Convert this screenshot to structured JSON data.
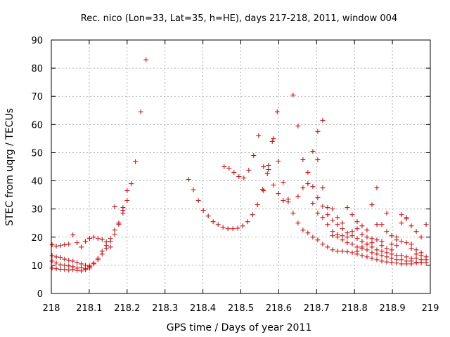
{
  "chart_data": {
    "type": "scatter",
    "title": "Rec. nico (Lon=33, Lat=35, h=HE), days 217-218, 2011, window 004",
    "xlabel": "GPS time / Days of year 2011",
    "ylabel": "STEC from uqrg / TECUs",
    "xlim": [
      218,
      219
    ],
    "ylim": [
      0,
      90
    ],
    "xticks": [
      218,
      218.1,
      218.2,
      218.3,
      218.4,
      218.5,
      218.6,
      218.7,
      218.8,
      218.9,
      219
    ],
    "xtick_labels": [
      "218",
      "218.1",
      "218.2",
      "218.3",
      "218.4",
      "218.5",
      "218.6",
      "218.7",
      "218.8",
      "218.9",
      "219"
    ],
    "yticks": [
      0,
      10,
      20,
      30,
      40,
      50,
      60,
      70,
      80,
      90
    ],
    "ytick_labels": [
      "0",
      "10",
      "20",
      "30",
      "40",
      "50",
      "60",
      "70",
      "80",
      "90"
    ],
    "grid": true,
    "marker": "+",
    "color": "#cc0000",
    "series": [
      {
        "name": "STEC",
        "points": [
          [
            218.002,
            17.3
          ],
          [
            218.013,
            16.8
          ],
          [
            218.024,
            17.0
          ],
          [
            218.035,
            17.3
          ],
          [
            218.046,
            17.5
          ],
          [
            218.057,
            20.8
          ],
          [
            218.068,
            18.0
          ],
          [
            218.079,
            16.5
          ],
          [
            218.09,
            18.5
          ],
          [
            218.101,
            19.6
          ],
          [
            218.112,
            20.0
          ],
          [
            218.123,
            19.5
          ],
          [
            218.134,
            19.2
          ],
          [
            218.145,
            18.3
          ],
          [
            218.156,
            16.5
          ],
          [
            218.002,
            13.5
          ],
          [
            218.013,
            13.0
          ],
          [
            218.024,
            12.8
          ],
          [
            218.035,
            12.2
          ],
          [
            218.046,
            11.8
          ],
          [
            218.057,
            11.5
          ],
          [
            218.068,
            11.0
          ],
          [
            218.079,
            10.5
          ],
          [
            218.09,
            10.0
          ],
          [
            218.101,
            9.8
          ],
          [
            218.112,
            10.8
          ],
          [
            218.123,
            12.5
          ],
          [
            218.134,
            15.0
          ],
          [
            218.145,
            17.0
          ],
          [
            218.156,
            19.5
          ],
          [
            218.167,
            22.5
          ],
          [
            218.178,
            25.0
          ],
          [
            218.189,
            29.5
          ],
          [
            218.2,
            33.0
          ],
          [
            218.211,
            39.0
          ],
          [
            218.222,
            46.8
          ],
          [
            218.236,
            64.5
          ],
          [
            218.25,
            83.0
          ],
          [
            218.002,
            9.0
          ],
          [
            218.013,
            8.8
          ],
          [
            218.024,
            8.6
          ],
          [
            218.035,
            8.5
          ],
          [
            218.046,
            8.3
          ],
          [
            218.057,
            8.5
          ],
          [
            218.068,
            8.2
          ],
          [
            218.079,
            8.0
          ],
          [
            218.09,
            8.5
          ],
          [
            218.101,
            9.5
          ],
          [
            218.112,
            10.5
          ],
          [
            218.123,
            12.0
          ],
          [
            218.134,
            14.0
          ],
          [
            218.145,
            16.0
          ],
          [
            218.156,
            18.5
          ],
          [
            218.167,
            21.0
          ],
          [
            218.178,
            24.5
          ],
          [
            218.189,
            28.5
          ],
          [
            218.2,
            36.5
          ],
          [
            218.002,
            11.5
          ],
          [
            218.013,
            10.8
          ],
          [
            218.024,
            10.2
          ],
          [
            218.035,
            10.0
          ],
          [
            218.046,
            9.8
          ],
          [
            218.057,
            9.5
          ],
          [
            218.068,
            9.0
          ],
          [
            218.079,
            9.2
          ],
          [
            218.09,
            8.8
          ],
          [
            218.101,
            9.0
          ],
          [
            218.167,
            30.8
          ],
          [
            218.178,
            25.0
          ],
          [
            218.189,
            30.5
          ],
          [
            218.362,
            40.5
          ],
          [
            218.375,
            36.8
          ],
          [
            218.388,
            33.0
          ],
          [
            218.401,
            29.5
          ],
          [
            218.414,
            27.5
          ],
          [
            218.427,
            25.5
          ],
          [
            218.44,
            24.5
          ],
          [
            218.453,
            23.5
          ],
          [
            218.466,
            23.0
          ],
          [
            218.479,
            23.0
          ],
          [
            218.492,
            23.2
          ],
          [
            218.505,
            24.0
          ],
          [
            218.518,
            25.5
          ],
          [
            218.531,
            28.0
          ],
          [
            218.544,
            31.5
          ],
          [
            218.557,
            37.0
          ],
          [
            218.57,
            42.5
          ],
          [
            218.583,
            54.0
          ],
          [
            218.596,
            64.5
          ],
          [
            218.456,
            45.0
          ],
          [
            218.469,
            44.5
          ],
          [
            218.482,
            43.0
          ],
          [
            218.495,
            41.5
          ],
          [
            218.508,
            41.0
          ],
          [
            218.521,
            43.8
          ],
          [
            218.534,
            49.0
          ],
          [
            218.547,
            56.0
          ],
          [
            218.56,
            45.0
          ],
          [
            218.573,
            45.5
          ],
          [
            218.586,
            55.0
          ],
          [
            218.599,
            47.0
          ],
          [
            218.612,
            39.5
          ],
          [
            218.625,
            32.5
          ],
          [
            218.638,
            70.5
          ],
          [
            218.651,
            59.5
          ],
          [
            218.664,
            47.5
          ],
          [
            218.677,
            43.0
          ],
          [
            218.69,
            50.5
          ],
          [
            218.703,
            57.5
          ],
          [
            218.716,
            61.5
          ],
          [
            218.56,
            36.5
          ],
          [
            218.573,
            44.0
          ],
          [
            218.586,
            38.5
          ],
          [
            218.599,
            35.5
          ],
          [
            218.612,
            33.0
          ],
          [
            218.625,
            33.5
          ],
          [
            218.638,
            28.5
          ],
          [
            218.651,
            25.0
          ],
          [
            218.664,
            22.5
          ],
          [
            218.677,
            21.5
          ],
          [
            218.69,
            20.0
          ],
          [
            218.703,
            19.0
          ],
          [
            218.716,
            17.5
          ],
          [
            218.729,
            16.5
          ],
          [
            218.742,
            15.5
          ],
          [
            218.755,
            15.0
          ],
          [
            218.768,
            15.0
          ],
          [
            218.781,
            14.8
          ],
          [
            218.794,
            14.5
          ],
          [
            218.807,
            14.0
          ],
          [
            218.82,
            13.5
          ],
          [
            218.833,
            13.0
          ],
          [
            218.846,
            12.5
          ],
          [
            218.859,
            12.0
          ],
          [
            218.872,
            11.5
          ],
          [
            218.885,
            11.2
          ],
          [
            218.898,
            11.0
          ],
          [
            218.911,
            10.8
          ],
          [
            218.924,
            10.5
          ],
          [
            218.937,
            10.5
          ],
          [
            218.95,
            10.5
          ],
          [
            218.963,
            10.8
          ],
          [
            218.976,
            11.0
          ],
          [
            218.989,
            11.0
          ],
          [
            218.651,
            34.5
          ],
          [
            218.664,
            37.5
          ],
          [
            218.677,
            39.0
          ],
          [
            218.69,
            38.0
          ],
          [
            218.703,
            34.0
          ],
          [
            218.716,
            31.0
          ],
          [
            218.729,
            28.0
          ],
          [
            218.742,
            26.0
          ],
          [
            218.755,
            24.5
          ],
          [
            218.768,
            23.0
          ],
          [
            218.781,
            21.5
          ],
          [
            218.794,
            20.5
          ],
          [
            218.807,
            19.5
          ],
          [
            218.82,
            18.5
          ],
          [
            218.833,
            17.5
          ],
          [
            218.846,
            16.5
          ],
          [
            218.859,
            15.5
          ],
          [
            218.872,
            15.0
          ],
          [
            218.885,
            14.5
          ],
          [
            218.898,
            14.0
          ],
          [
            218.911,
            13.5
          ],
          [
            218.924,
            13.5
          ],
          [
            218.937,
            13.0
          ],
          [
            218.95,
            12.5
          ],
          [
            218.963,
            12.5
          ],
          [
            218.976,
            12.0
          ],
          [
            218.989,
            12.0
          ],
          [
            218.69,
            32.0
          ],
          [
            218.703,
            28.5
          ],
          [
            218.716,
            27.0
          ],
          [
            218.729,
            24.5
          ],
          [
            218.742,
            22.0
          ],
          [
            218.755,
            20.0
          ],
          [
            218.768,
            19.0
          ],
          [
            218.781,
            18.0
          ],
          [
            218.794,
            17.5
          ],
          [
            218.807,
            16.5
          ],
          [
            218.82,
            16.0
          ],
          [
            218.833,
            15.5
          ],
          [
            218.846,
            14.5
          ],
          [
            218.859,
            14.0
          ],
          [
            218.872,
            13.5
          ],
          [
            218.885,
            13.0
          ],
          [
            218.898,
            12.5
          ],
          [
            218.911,
            12.0
          ],
          [
            218.924,
            12.0
          ],
          [
            218.937,
            11.5
          ],
          [
            218.95,
            11.5
          ],
          [
            218.963,
            11.0
          ],
          [
            218.976,
            11.0
          ],
          [
            218.703,
            47.5
          ],
          [
            218.716,
            37.5
          ],
          [
            218.729,
            30.5
          ],
          [
            218.742,
            30.0
          ],
          [
            218.755,
            27.0
          ],
          [
            218.768,
            25.0
          ],
          [
            218.781,
            30.5
          ],
          [
            218.794,
            28.0
          ],
          [
            218.807,
            25.5
          ],
          [
            218.82,
            24.0
          ],
          [
            218.833,
            22.5
          ],
          [
            218.846,
            31.5
          ],
          [
            218.859,
            37.5
          ],
          [
            218.872,
            24.5
          ],
          [
            218.885,
            22.0
          ],
          [
            218.898,
            20.5
          ],
          [
            218.911,
            20.0
          ],
          [
            218.924,
            28.0
          ],
          [
            218.937,
            27.0
          ],
          [
            218.95,
            24.0
          ],
          [
            218.963,
            22.0
          ],
          [
            218.976,
            20.0
          ],
          [
            218.989,
            24.5
          ],
          [
            218.742,
            20.5
          ],
          [
            218.755,
            21.0
          ],
          [
            218.768,
            20.5
          ],
          [
            218.781,
            20.0
          ],
          [
            218.794,
            22.0
          ],
          [
            218.807,
            23.0
          ],
          [
            218.82,
            21.0
          ],
          [
            218.833,
            20.0
          ],
          [
            218.846,
            19.5
          ],
          [
            218.859,
            24.5
          ],
          [
            218.872,
            18.5
          ],
          [
            218.885,
            28.5
          ],
          [
            218.898,
            17.5
          ],
          [
            218.911,
            17.0
          ],
          [
            218.924,
            25.0
          ],
          [
            218.937,
            26.5
          ],
          [
            218.95,
            16.0
          ],
          [
            218.963,
            15.5
          ],
          [
            218.976,
            14.5
          ],
          [
            218.807,
            15.0
          ],
          [
            218.82,
            16.5
          ],
          [
            218.833,
            17.5
          ],
          [
            218.846,
            18.0
          ],
          [
            218.859,
            19.0
          ],
          [
            218.872,
            17.0
          ],
          [
            218.885,
            16.0
          ],
          [
            218.898,
            15.5
          ],
          [
            218.911,
            19.0
          ],
          [
            218.924,
            18.5
          ],
          [
            218.937,
            18.0
          ],
          [
            218.95,
            17.5
          ],
          [
            218.963,
            14.0
          ],
          [
            218.976,
            13.5
          ],
          [
            218.989,
            13.0
          ]
        ]
      }
    ]
  }
}
